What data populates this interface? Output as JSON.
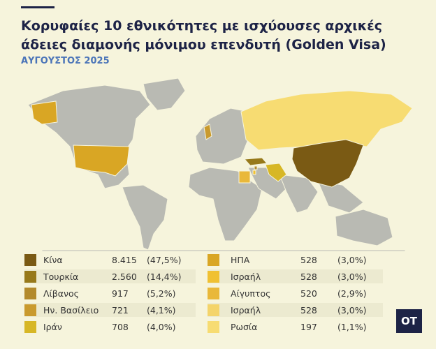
{
  "header": {
    "title_lines": [
      "Κορυφαίες 10 εθνικότητες με ισχύουσες αρχικές",
      "άδειες διαμονής μόνιμου επενδυτή (Golden Visa)"
    ],
    "subtitle": "ΑΥΓΟΥΣΤΟΣ 2025"
  },
  "legend": {
    "columns": [
      [
        {
          "name": "Κίνα",
          "value": "8.415",
          "share": "(47,5%)",
          "color": "#7a5a14"
        },
        {
          "name": "Τουρκία",
          "value": "2.560",
          "share": "(14,4%)",
          "color": "#97791a"
        },
        {
          "name": "Λίβανος",
          "value": "917",
          "share": "(5,2%)",
          "color": "#b38a2c"
        },
        {
          "name": "Ην. Βασίλειο",
          "value": "721",
          "share": "(4,1%)",
          "color": "#c99a2e"
        },
        {
          "name": "Ιράν",
          "value": "708",
          "share": "(4,0%)",
          "color": "#d7b726"
        }
      ],
      [
        {
          "name": "ΗΠΑ",
          "value": "528",
          "share": "(3,0%)",
          "color": "#d9a624"
        },
        {
          "name": "Ισραήλ",
          "value": "528",
          "share": "(3,0%)",
          "color": "#f0c132"
        },
        {
          "name": "Αίγυπτος",
          "value": "520",
          "share": "(2,9%)",
          "color": "#e9b83a"
        },
        {
          "name": "Ισραήλ",
          "value": "528",
          "share": "(3,0%)",
          "color": "#f4d46a"
        },
        {
          "name": "Ρωσία",
          "value": "197",
          "share": "(1,1%)",
          "color": "#f7dc72"
        }
      ]
    ]
  },
  "logo": "OT"
}
